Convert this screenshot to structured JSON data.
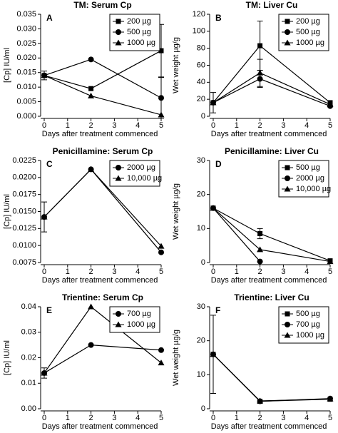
{
  "chart_data": [
    {
      "type": "line",
      "title": "TM: Serum Cp",
      "panel_label": "A",
      "y_label": "[Cp] IU/ml",
      "x_label": "Days after treatment commenced",
      "x": [
        0,
        2,
        5
      ],
      "xlim": [
        0,
        5
      ],
      "xticks": [
        0,
        1,
        2,
        3,
        4,
        5
      ],
      "ylim": [
        0,
        0.035
      ],
      "yticks": [
        {
          "value": 0,
          "label": "0.000"
        },
        {
          "value": 0.005,
          "label": "0.005"
        },
        {
          "value": 0.01,
          "label": "0.010"
        },
        {
          "value": 0.015,
          "label": "0.015"
        },
        {
          "value": 0.02,
          "label": "0.020"
        },
        {
          "value": 0.025,
          "label": "0.025"
        },
        {
          "value": 0.03,
          "label": "0.030"
        },
        {
          "value": 0.035,
          "label": "0.035"
        }
      ],
      "legend": "upper right",
      "series": [
        {
          "name": "200 µg",
          "marker": "square",
          "color": "#000000",
          "values": [
            0.014,
            0.0095,
            0.0225
          ],
          "errors": [
            0.0015,
            null,
            0.009
          ]
        },
        {
          "name": "500 µg",
          "marker": "circle",
          "color": "#000000",
          "values": [
            0.014,
            0.0195,
            0.0063
          ],
          "errors": [
            null,
            null,
            0.007
          ]
        },
        {
          "name": "1000 µg",
          "marker": "triangle",
          "color": "#000000",
          "values": [
            0.014,
            0.007,
            0.0005
          ],
          "errors": [
            null,
            null,
            null
          ]
        }
      ]
    },
    {
      "type": "line",
      "title": "TM: Liver Cu",
      "panel_label": "B",
      "y_label": "Wet weight µg/g",
      "x_label": "Days after treatment commenced",
      "x": [
        0,
        2,
        5
      ],
      "xlim": [
        0,
        5
      ],
      "xticks": [
        0,
        1,
        2,
        3,
        4,
        5
      ],
      "ylim": [
        0,
        120
      ],
      "yticks": [
        0,
        20,
        40,
        60,
        80,
        100,
        120
      ],
      "legend": "upper right",
      "series": [
        {
          "name": "200 µg",
          "marker": "square",
          "color": "#000000",
          "values": [
            16,
            83,
            16
          ],
          "errors": [
            12,
            29,
            null
          ]
        },
        {
          "name": "500 µg",
          "marker": "circle",
          "color": "#000000",
          "values": [
            16,
            44,
            12
          ],
          "errors": [
            null,
            10,
            null
          ]
        },
        {
          "name": "1000 µg",
          "marker": "triangle",
          "color": "#000000",
          "values": [
            16,
            51,
            14
          ],
          "errors": [
            null,
            16,
            null
          ]
        }
      ]
    },
    {
      "type": "line",
      "title": "Penicillamine: Serum Cp",
      "panel_label": "C",
      "y_label": "[Cp] IU/ml",
      "x_label": "Days after treatment commenced",
      "x": [
        0,
        2,
        5
      ],
      "xlim": [
        0,
        5
      ],
      "xticks": [
        0,
        1,
        2,
        3,
        4,
        5
      ],
      "ylim": [
        0.0075,
        0.0225
      ],
      "yticks": [
        {
          "value": 0.0075,
          "label": "0.0075"
        },
        {
          "value": 0.01,
          "label": "0.0100"
        },
        {
          "value": 0.0125,
          "label": "0.0125"
        },
        {
          "value": 0.015,
          "label": "0.0150"
        },
        {
          "value": 0.0175,
          "label": "0.0175"
        },
        {
          "value": 0.02,
          "label": "0.0200"
        },
        {
          "value": 0.0225,
          "label": "0.0225"
        }
      ],
      "legend": "upper right",
      "series": [
        {
          "name": "2000 µg",
          "marker": "circle",
          "color": "#000000",
          "values": [
            0.0142,
            0.0212,
            0.009
          ],
          "errors": [
            0.0022,
            null,
            null
          ]
        },
        {
          "name": "10,000 µg",
          "marker": "triangle",
          "color": "#000000",
          "values": [
            0.0142,
            0.0212,
            0.0099
          ],
          "errors": [
            null,
            null,
            null
          ]
        }
      ]
    },
    {
      "type": "line",
      "title": "Penicillamine: Liver Cu",
      "panel_label": "D",
      "y_label": "Wet weight µg/g",
      "x_label": "Days after treatment commenced",
      "x": [
        0,
        2,
        5
      ],
      "xlim": [
        0,
        5
      ],
      "xticks": [
        0,
        1,
        2,
        3,
        4,
        5
      ],
      "ylim": [
        0,
        30
      ],
      "yticks": [
        0,
        10,
        20,
        30
      ],
      "legend": "upper right",
      "series": [
        {
          "name": "500 µg",
          "marker": "square",
          "color": "#000000",
          "values": [
            16,
            8.5,
            0.5
          ],
          "errors": [
            null,
            1.5,
            null
          ]
        },
        {
          "name": "2000 µg",
          "marker": "circle",
          "color": "#000000",
          "values": [
            16,
            0.3,
            null
          ],
          "errors": [
            null,
            null,
            null
          ]
        },
        {
          "name": "10,000 µg",
          "marker": "triangle",
          "color": "#000000",
          "values": [
            16,
            3.8,
            0.3
          ],
          "errors": [
            null,
            null,
            null
          ]
        }
      ]
    },
    {
      "type": "line",
      "title": "Trientine: Serum Cp",
      "panel_label": "E",
      "y_label": "[Cp] IU/ml",
      "x_label": "Days after treatment commenced",
      "x": [
        0,
        2,
        5
      ],
      "xlim": [
        0,
        5
      ],
      "xticks": [
        0,
        1,
        2,
        3,
        4,
        5
      ],
      "ylim": [
        0,
        0.04
      ],
      "yticks": [
        {
          "value": 0,
          "label": "0.00"
        },
        {
          "value": 0.01,
          "label": "0.01"
        },
        {
          "value": 0.02,
          "label": "0.02"
        },
        {
          "value": 0.03,
          "label": "0.03"
        },
        {
          "value": 0.04,
          "label": "0.04"
        }
      ],
      "legend": "upper right",
      "series": [
        {
          "name": "700 µg",
          "marker": "circle",
          "color": "#000000",
          "values": [
            0.014,
            0.025,
            0.023
          ],
          "errors": [
            0.002,
            null,
            null
          ]
        },
        {
          "name": "1000 µg",
          "marker": "triangle",
          "color": "#000000",
          "values": [
            0.014,
            0.04,
            0.018
          ],
          "errors": [
            null,
            null,
            null
          ]
        }
      ]
    },
    {
      "type": "line",
      "title": "Trientine: Liver Cu",
      "panel_label": "F",
      "y_label": "Wet weight µg/g",
      "x_label": "Days after treatment commenced",
      "x": [
        0,
        2,
        5
      ],
      "xlim": [
        0,
        5
      ],
      "xticks": [
        0,
        1,
        2,
        3,
        4,
        5
      ],
      "ylim": [
        0,
        30
      ],
      "yticks": [
        0,
        10,
        20,
        30
      ],
      "legend": "upper right",
      "series": [
        {
          "name": "500 µg",
          "marker": "square",
          "color": "#000000",
          "values": [
            16,
            2.2,
            2.8
          ],
          "errors": [
            11.5,
            null,
            null
          ]
        },
        {
          "name": "700 µg",
          "marker": "circle",
          "color": "#000000",
          "values": [
            16,
            2.2,
            3
          ],
          "errors": [
            null,
            null,
            null
          ]
        },
        {
          "name": "1000 µg",
          "marker": "triangle",
          "color": "#000000",
          "values": [
            16,
            2.3,
            2.9
          ],
          "errors": [
            null,
            null,
            null
          ]
        }
      ]
    }
  ]
}
